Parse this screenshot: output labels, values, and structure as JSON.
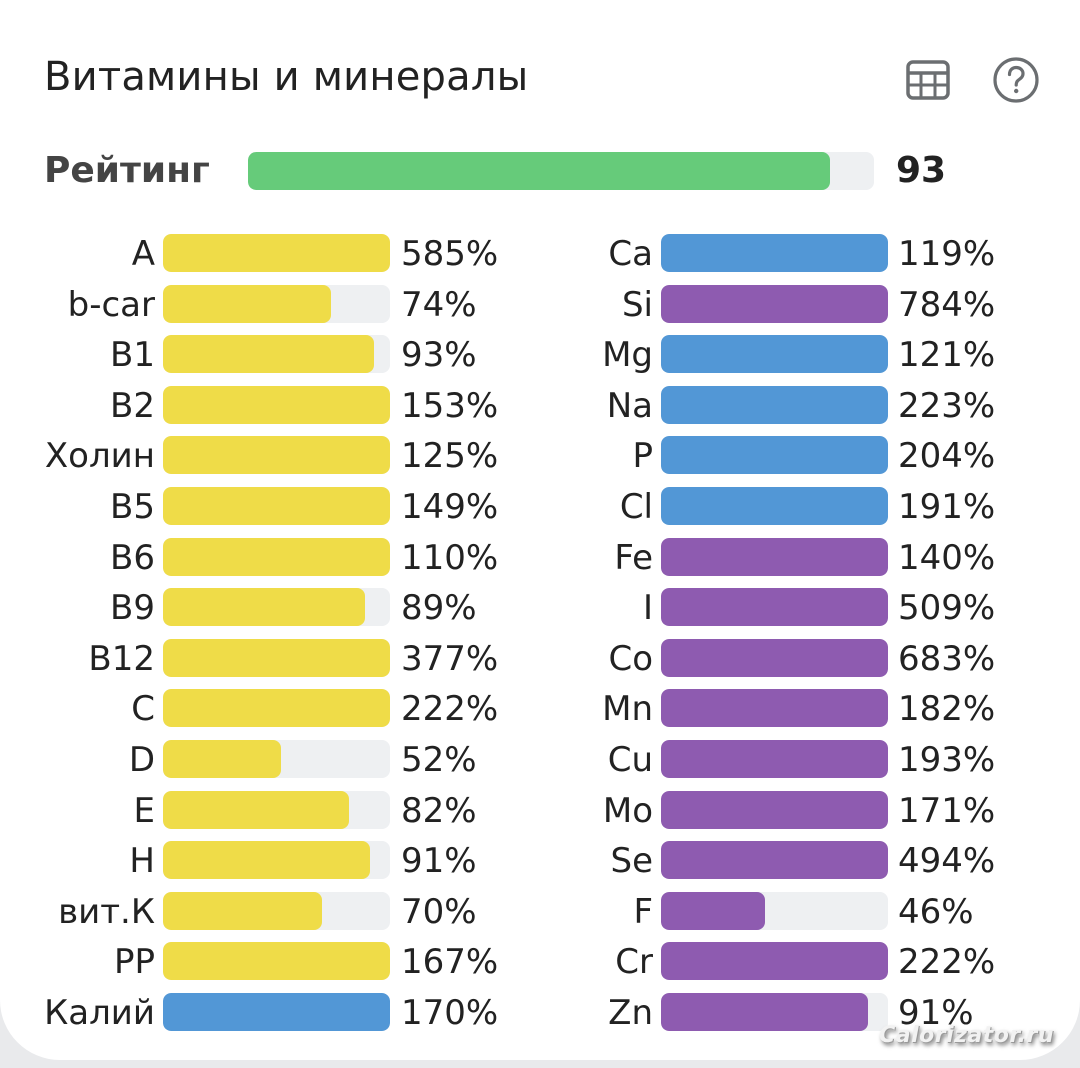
{
  "header": {
    "title": "Витамины и минералы",
    "table_icon": "table-icon",
    "help_icon": "help-circle-icon"
  },
  "rating": {
    "label": "Рейтинг",
    "value": "93",
    "percent": 93,
    "color": "#66cb7a"
  },
  "colors": {
    "vitamin": "#efdc48",
    "macro": "#5297d6",
    "micro": "#8e5bb0",
    "track": "#eef0f2"
  },
  "chart_data": {
    "type": "bar",
    "title": "Витамины и минералы",
    "orientation": "horizontal",
    "unit": "% of daily norm",
    "xlim": [
      0,
      100
    ],
    "note": "bars are capped at 100%",
    "series": [
      {
        "name": "left-column",
        "items": [
          {
            "label": "A",
            "value": 585,
            "text": "585%",
            "group": "vitamin"
          },
          {
            "label": "b-car",
            "value": 74,
            "text": "74%",
            "group": "vitamin"
          },
          {
            "label": "B1",
            "value": 93,
            "text": "93%",
            "group": "vitamin"
          },
          {
            "label": "B2",
            "value": 153,
            "text": "153%",
            "group": "vitamin"
          },
          {
            "label": "Холин",
            "value": 125,
            "text": "125%",
            "group": "vitamin"
          },
          {
            "label": "B5",
            "value": 149,
            "text": "149%",
            "group": "vitamin"
          },
          {
            "label": "B6",
            "value": 110,
            "text": "110%",
            "group": "vitamin"
          },
          {
            "label": "B9",
            "value": 89,
            "text": "89%",
            "group": "vitamin"
          },
          {
            "label": "B12",
            "value": 377,
            "text": "377%",
            "group": "vitamin"
          },
          {
            "label": "C",
            "value": 222,
            "text": "222%",
            "group": "vitamin"
          },
          {
            "label": "D",
            "value": 52,
            "text": "52%",
            "group": "vitamin"
          },
          {
            "label": "E",
            "value": 82,
            "text": "82%",
            "group": "vitamin"
          },
          {
            "label": "H",
            "value": 91,
            "text": "91%",
            "group": "vitamin"
          },
          {
            "label": "вит.К",
            "value": 70,
            "text": "70%",
            "group": "vitamin"
          },
          {
            "label": "PP",
            "value": 167,
            "text": "167%",
            "group": "vitamin"
          },
          {
            "label": "Калий",
            "value": 170,
            "text": "170%",
            "group": "macro"
          }
        ]
      },
      {
        "name": "right-column",
        "items": [
          {
            "label": "Ca",
            "value": 119,
            "text": "119%",
            "group": "macro"
          },
          {
            "label": "Si",
            "value": 784,
            "text": "784%",
            "group": "micro"
          },
          {
            "label": "Mg",
            "value": 121,
            "text": "121%",
            "group": "macro"
          },
          {
            "label": "Na",
            "value": 223,
            "text": "223%",
            "group": "macro"
          },
          {
            "label": "P",
            "value": 204,
            "text": "204%",
            "group": "macro"
          },
          {
            "label": "Cl",
            "value": 191,
            "text": "191%",
            "group": "macro"
          },
          {
            "label": "Fe",
            "value": 140,
            "text": "140%",
            "group": "micro"
          },
          {
            "label": "I",
            "value": 509,
            "text": "509%",
            "group": "micro"
          },
          {
            "label": "Co",
            "value": 683,
            "text": "683%",
            "group": "micro"
          },
          {
            "label": "Mn",
            "value": 182,
            "text": "182%",
            "group": "micro"
          },
          {
            "label": "Cu",
            "value": 193,
            "text": "193%",
            "group": "micro"
          },
          {
            "label": "Mo",
            "value": 171,
            "text": "171%",
            "group": "micro"
          },
          {
            "label": "Se",
            "value": 494,
            "text": "494%",
            "group": "micro"
          },
          {
            "label": "F",
            "value": 46,
            "text": "46%",
            "group": "micro"
          },
          {
            "label": "Cr",
            "value": 222,
            "text": "222%",
            "group": "micro"
          },
          {
            "label": "Zn",
            "value": 91,
            "text": "91%",
            "group": "micro"
          }
        ]
      }
    ]
  },
  "watermark": "Calorizator.ru"
}
